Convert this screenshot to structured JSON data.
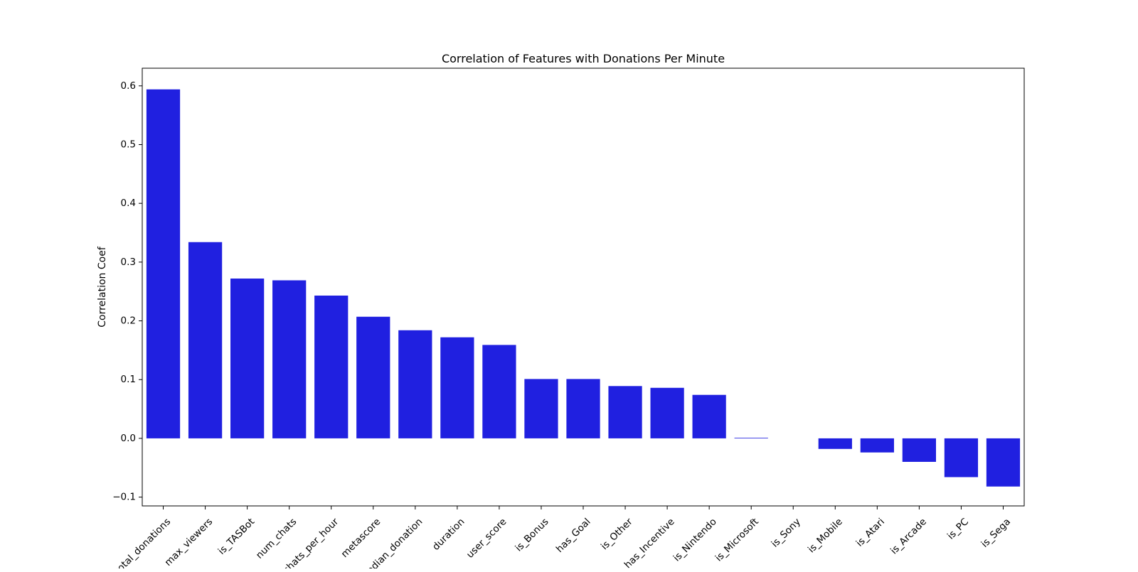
{
  "chart_data": {
    "type": "bar",
    "title": "Correlation of Features with Donations Per Minute",
    "xlabel": "",
    "ylabel": "Correlation Coef",
    "ylim": [
      -0.115,
      0.63
    ],
    "yticks": [
      -0.1,
      0.0,
      0.1,
      0.2,
      0.3,
      0.4,
      0.5,
      0.6
    ],
    "grid": false,
    "legend": "none",
    "bar_color": "#2020e0",
    "categories": [
      "total_donations",
      "max_viewers",
      "is_TASBot",
      "num_chats",
      "chats_per_hour",
      "metascore",
      "median_donation",
      "duration",
      "user_score",
      "is_Bonus",
      "has_Goal",
      "is_Other",
      "has_Incentive",
      "is_Nintendo",
      "is_Microsoft",
      "is_Sony",
      "is_Mobile",
      "is_Atari",
      "is_Arcade",
      "is_PC",
      "is_Sega"
    ],
    "values": [
      0.594,
      0.334,
      0.272,
      0.269,
      0.243,
      0.207,
      0.184,
      0.172,
      0.159,
      0.101,
      0.101,
      0.089,
      0.086,
      0.074,
      0.001,
      0.0,
      -0.018,
      -0.024,
      -0.04,
      -0.066,
      -0.082
    ]
  }
}
